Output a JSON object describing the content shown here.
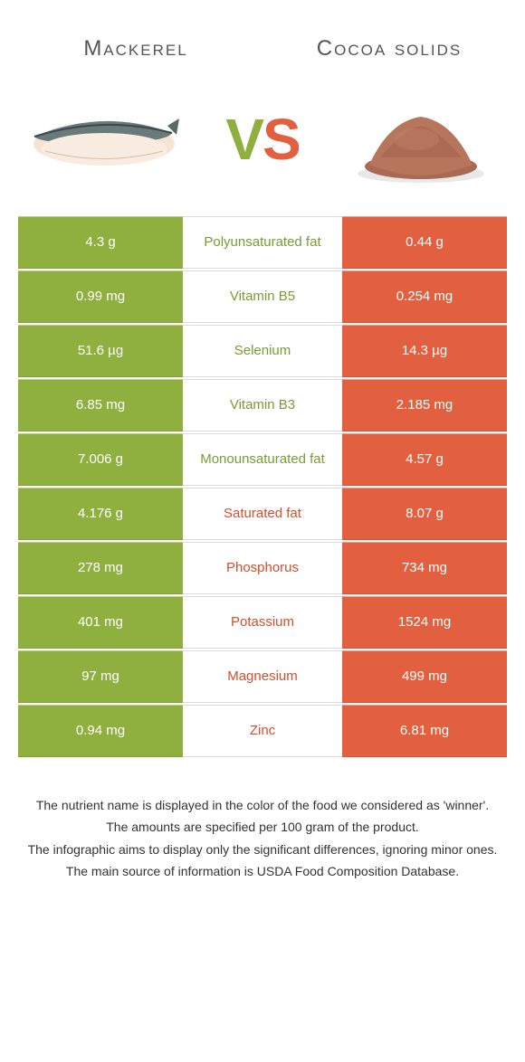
{
  "colors": {
    "left": "#8faf3f",
    "right": "#e25f3f",
    "left_text": "#7a9a35",
    "right_text": "#d34f2f",
    "white": "#ffffff",
    "row_border": "#dcdcdc"
  },
  "header": {
    "left_title": "Mackerel",
    "right_title": "Cocoa solids",
    "vs_v": "V",
    "vs_s": "S"
  },
  "rows": [
    {
      "left": "4.3 g",
      "label": "Polyunsaturated fat",
      "right": "0.44 g",
      "winner": "left"
    },
    {
      "left": "0.99 mg",
      "label": "Vitamin B5",
      "right": "0.254 mg",
      "winner": "left"
    },
    {
      "left": "51.6 µg",
      "label": "Selenium",
      "right": "14.3 µg",
      "winner": "left"
    },
    {
      "left": "6.85 mg",
      "label": "Vitamin B3",
      "right": "2.185 mg",
      "winner": "left"
    },
    {
      "left": "7.006 g",
      "label": "Monounsaturated fat",
      "right": "4.57 g",
      "winner": "left"
    },
    {
      "left": "4.176 g",
      "label": "Saturated fat",
      "right": "8.07 g",
      "winner": "right"
    },
    {
      "left": "278 mg",
      "label": "Phosphorus",
      "right": "734 mg",
      "winner": "right"
    },
    {
      "left": "401 mg",
      "label": "Potassium",
      "right": "1524 mg",
      "winner": "right"
    },
    {
      "left": "97 mg",
      "label": "Magnesium",
      "right": "499 mg",
      "winner": "right"
    },
    {
      "left": "0.94 mg",
      "label": "Zinc",
      "right": "6.81 mg",
      "winner": "right"
    }
  ],
  "footer": {
    "line1": "The nutrient name is displayed in the color of the food we considered as 'winner'.",
    "line2": "The amounts are specified per 100 gram of the product.",
    "line3": "The infographic aims to display only the significant differences, ignoring minor ones.",
    "line4": "The main source of information is USDA Food Composition Database."
  }
}
